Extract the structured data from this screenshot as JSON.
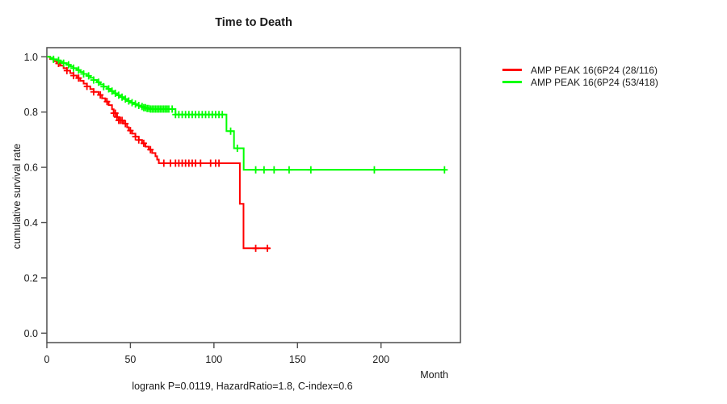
{
  "title": "Time to Death",
  "y_axis_label": "cumulative survival rate",
  "x_axis_label": "Month",
  "footer": "logrank P=0.0119, HazardRatio=1.8, C-index=0.6",
  "legend": {
    "position": "right-outside",
    "items": [
      {
        "label": "AMP PEAK 16(6P24 (28/116)",
        "color": "#ff0000"
      },
      {
        "label": "AMP PEAK 16(6P24 (53/418)",
        "color": "#00ff00"
      }
    ]
  },
  "chart_data": {
    "type": "line",
    "subtype": "kaplan-meier-step-survival",
    "title": "Time to Death",
    "xlabel": "Month",
    "ylabel": "cumulative survival rate",
    "xlim": [
      0,
      240
    ],
    "ylim": [
      0,
      1
    ],
    "x_ticks": [
      0,
      50,
      100,
      150,
      200
    ],
    "y_ticks": [
      0,
      0.2,
      0.4,
      0.6,
      0.8,
      1
    ],
    "grid": false,
    "legend_position": "right-outside",
    "annotation": "logrank P=0.0119, HazardRatio=1.8, C-index=0.6",
    "series": [
      {
        "name": "AMP PEAK 16(6P24 (28/116)",
        "color": "#ff0000",
        "end_month": 133.5,
        "steps": [
          [
            0,
            1
          ],
          [
            2,
            0.992
          ],
          [
            4,
            0.984
          ],
          [
            6,
            0.976
          ],
          [
            8,
            0.968
          ],
          [
            10,
            0.959
          ],
          [
            12,
            0.95
          ],
          [
            14,
            0.941
          ],
          [
            16,
            0.932
          ],
          [
            18,
            0.923
          ],
          [
            20,
            0.913
          ],
          [
            22,
            0.903
          ],
          [
            24,
            0.893
          ],
          [
            26,
            0.883
          ],
          [
            28,
            0.873
          ],
          [
            31,
            0.862
          ],
          [
            33,
            0.85
          ],
          [
            35,
            0.838
          ],
          [
            37,
            0.825
          ],
          [
            39,
            0.81
          ],
          [
            40,
            0.796
          ],
          [
            42,
            0.782
          ],
          [
            43,
            0.77
          ],
          [
            46,
            0.758
          ],
          [
            48,
            0.745
          ],
          [
            49,
            0.733
          ],
          [
            51,
            0.722
          ],
          [
            53,
            0.711
          ],
          [
            55,
            0.699
          ],
          [
            57,
            0.687
          ],
          [
            59,
            0.675
          ],
          [
            61,
            0.664
          ],
          [
            63,
            0.652
          ],
          [
            65,
            0.64
          ],
          [
            66,
            0.628
          ],
          [
            67,
            0.615
          ],
          [
            115.5,
            0.468
          ],
          [
            117.7,
            0.307
          ]
        ],
        "censor_months": [
          7,
          12,
          16,
          19,
          24,
          28,
          32,
          36,
          40,
          41,
          42,
          43,
          44,
          45,
          47,
          50,
          53,
          55,
          58,
          62,
          70,
          74,
          77,
          79,
          81,
          83,
          85,
          87,
          89,
          92,
          98,
          101,
          103,
          125,
          132
        ]
      },
      {
        "name": "AMP PEAK 16(6P24 (53/418)",
        "color": "#00ff00",
        "end_month": 238.5,
        "steps": [
          [
            0,
            1
          ],
          [
            2,
            0.996
          ],
          [
            4,
            0.991
          ],
          [
            6,
            0.987
          ],
          [
            8,
            0.982
          ],
          [
            10,
            0.977
          ],
          [
            12,
            0.971
          ],
          [
            14,
            0.965
          ],
          [
            16,
            0.959
          ],
          [
            18,
            0.952
          ],
          [
            20,
            0.945
          ],
          [
            22,
            0.938
          ],
          [
            24,
            0.931
          ],
          [
            26,
            0.924
          ],
          [
            28,
            0.916
          ],
          [
            30,
            0.908
          ],
          [
            32,
            0.9
          ],
          [
            34,
            0.892
          ],
          [
            36,
            0.884
          ],
          [
            38,
            0.876
          ],
          [
            40,
            0.868
          ],
          [
            42,
            0.861
          ],
          [
            44,
            0.854
          ],
          [
            46,
            0.847
          ],
          [
            48,
            0.84
          ],
          [
            50,
            0.834
          ],
          [
            52,
            0.829
          ],
          [
            54,
            0.824
          ],
          [
            56,
            0.82
          ],
          [
            58,
            0.816
          ],
          [
            60,
            0.813
          ],
          [
            62,
            0.811
          ],
          [
            77,
            0.791
          ],
          [
            107.5,
            0.731
          ],
          [
            112,
            0.669
          ],
          [
            117.8,
            0.591
          ]
        ],
        "censor_months": [
          4,
          7,
          10,
          13,
          16,
          19,
          22,
          25,
          28,
          31,
          34,
          37,
          39,
          41,
          43,
          45,
          47,
          49,
          51,
          53,
          55,
          57,
          58,
          59,
          60,
          61,
          62,
          63,
          64,
          65,
          66,
          67,
          68,
          69,
          70,
          71,
          72,
          73,
          75,
          77,
          79,
          81,
          83,
          85,
          87,
          89,
          91,
          93,
          95,
          97,
          99,
          101,
          103,
          105,
          110,
          114,
          125,
          130,
          136,
          145,
          158,
          196,
          238
        ]
      }
    ]
  }
}
